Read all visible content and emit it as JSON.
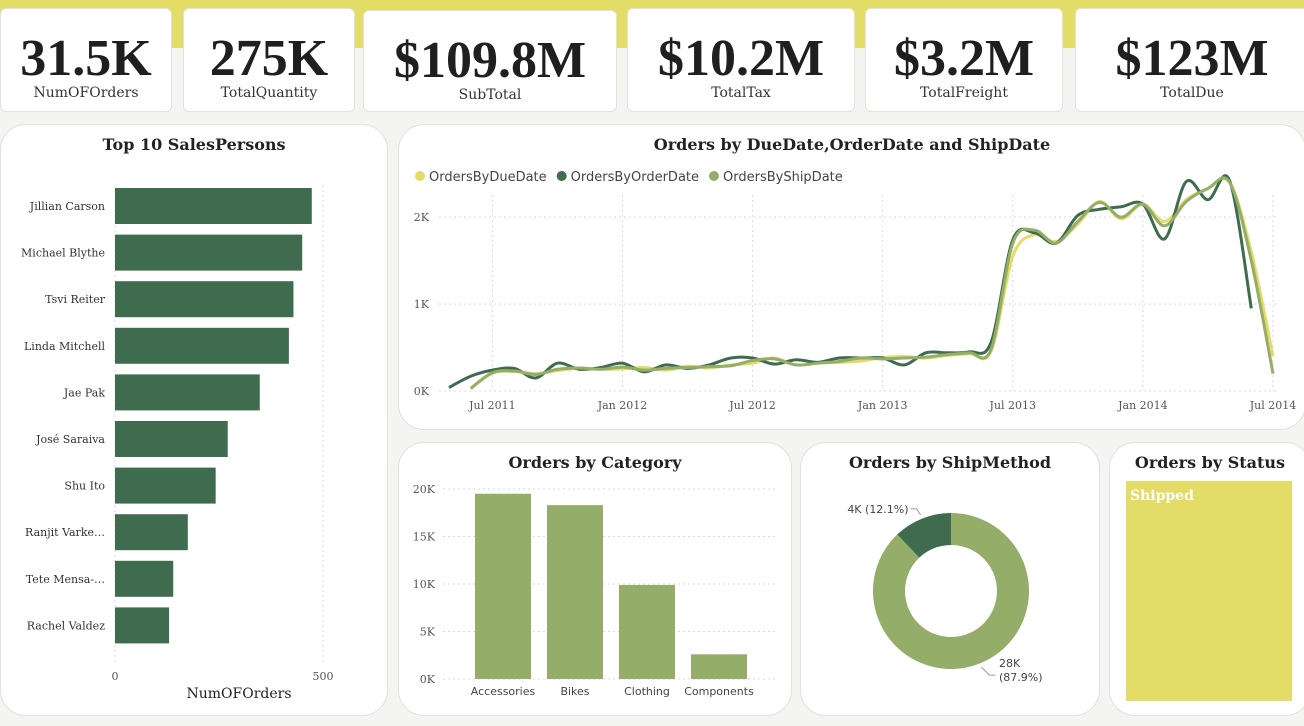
{
  "kpis": [
    {
      "value": "31.5K",
      "label": "NumOFOrders"
    },
    {
      "value": "275K",
      "label": "TotalQuantity"
    },
    {
      "value": "$109.8M",
      "label": "SubTotal"
    },
    {
      "value": "$10.2M",
      "label": "TotalTax"
    },
    {
      "value": "$3.2M",
      "label": "TotalFreight"
    },
    {
      "value": "$123M",
      "label": "TotalDue"
    }
  ],
  "colors": {
    "dark_green": "#3f6b4f",
    "olive_green": "#94ae69",
    "yellow": "#e3dc66",
    "grid": "#d9d9d9"
  },
  "chart_data": [
    {
      "id": "salespersons",
      "type": "bar",
      "orientation": "horizontal",
      "title": "Top 10 SalesPersons",
      "xlabel": "NumOFOrders",
      "categories": [
        "Jillian Carson",
        "Michael Blythe",
        "Tsvi Reiter",
        "Linda Mitchell",
        "Jae Pak",
        "José Saraiva",
        "Shu Ito",
        "Ranjit Varke…",
        "Tete Mensa-…",
        "Rachel Valdez"
      ],
      "values": [
        473,
        450,
        429,
        418,
        348,
        271,
        242,
        175,
        140,
        130
      ],
      "xlim": [
        0,
        500
      ],
      "xticks": [
        "0",
        "500"
      ],
      "grid": true
    },
    {
      "id": "orders_by_date",
      "type": "line",
      "title": "Orders by DueDate,OrderDate and ShipDate",
      "legend_position": "top-left",
      "ylim": [
        0,
        2600
      ],
      "yticks": [
        {
          "value": 0,
          "label": "0K"
        },
        {
          "value": 1000,
          "label": "1K"
        },
        {
          "value": 2000,
          "label": "2K"
        }
      ],
      "xticks": [
        "Jul 2011",
        "Jan 2012",
        "Jul 2012",
        "Jan 2013",
        "Jul 2013",
        "Jan 2014",
        "Jul 2014"
      ],
      "x": [
        "May 2011",
        "Jun 2011",
        "Jul 2011",
        "Aug 2011",
        "Sep 2011",
        "Oct 2011",
        "Nov 2011",
        "Dec 2011",
        "Jan 2012",
        "Feb 2012",
        "Mar 2012",
        "Apr 2012",
        "May 2012",
        "Jun 2012",
        "Jul 2012",
        "Aug 2012",
        "Sep 2012",
        "Oct 2012",
        "Nov 2012",
        "Dec 2012",
        "Jan 2013",
        "Feb 2013",
        "Mar 2013",
        "Apr 2013",
        "May 2013",
        "Jun 2013",
        "Jul 2013",
        "Aug 2013",
        "Sep 2013",
        "Oct 2013",
        "Nov 2013",
        "Dec 2013",
        "Jan 2014",
        "Feb 2014",
        "Mar 2014",
        "Apr 2014",
        "May 2014",
        "Jun 2014",
        "Jul 2014"
      ],
      "series": [
        {
          "name": "OrdersByDueDate",
          "color": "#e3dc66",
          "values": [
            null,
            25,
            205,
            225,
            200,
            235,
            260,
            250,
            255,
            270,
            240,
            285,
            265,
            300,
            320,
            380,
            300,
            320,
            330,
            345,
            385,
            395,
            380,
            410,
            430,
            460,
            1550,
            1800,
            1720,
            1920,
            2180,
            1980,
            2150,
            1950,
            2200,
            2330,
            2400,
            1600,
            400
          ]
        },
        {
          "name": "OrdersByOrderDate",
          "color": "#3f6b4f",
          "values": [
            40,
            170,
            240,
            260,
            150,
            320,
            250,
            270,
            320,
            220,
            300,
            260,
            300,
            380,
            380,
            310,
            360,
            330,
            380,
            380,
            380,
            300,
            440,
            440,
            450,
            560,
            1740,
            1820,
            1700,
            2020,
            2090,
            2120,
            2150,
            1750,
            2410,
            2200,
            2420,
            950,
            null
          ]
        },
        {
          "name": "OrdersByShipDate",
          "color": "#94ae69",
          "values": [
            null,
            30,
            210,
            230,
            190,
            250,
            265,
            250,
            275,
            240,
            260,
            270,
            280,
            290,
            350,
            370,
            300,
            320,
            340,
            380,
            370,
            380,
            390,
            420,
            440,
            480,
            1700,
            1850,
            1700,
            1950,
            2170,
            2000,
            2150,
            1900,
            2180,
            2330,
            2400,
            1500,
            200
          ]
        }
      ]
    },
    {
      "id": "orders_by_category",
      "type": "bar",
      "title": "Orders by Category",
      "categories": [
        "Accessories",
        "Bikes",
        "Clothing",
        "Components"
      ],
      "values": [
        19500,
        18300,
        9900,
        2600
      ],
      "ylim": [
        0,
        20000
      ],
      "yticks": [
        {
          "value": 0,
          "label": "0K"
        },
        {
          "value": 5000,
          "label": "5K"
        },
        {
          "value": 10000,
          "label": "10K"
        },
        {
          "value": 15000,
          "label": "15K"
        },
        {
          "value": 20000,
          "label": "20K"
        }
      ],
      "grid": true
    },
    {
      "id": "orders_by_shipmethod",
      "type": "pie",
      "variant": "donut",
      "title": "Orders by ShipMethod",
      "slices": [
        {
          "label": "28K (87.9%)",
          "value": 87.9,
          "color": "#94ae69"
        },
        {
          "label": "4K (12.1%)",
          "value": 12.1,
          "color": "#3f6b4f"
        }
      ]
    },
    {
      "id": "orders_by_status",
      "type": "treemap",
      "title": "Orders by Status",
      "items": [
        {
          "label": "Shipped",
          "value": 100,
          "color": "#e3dc66"
        }
      ]
    }
  ]
}
